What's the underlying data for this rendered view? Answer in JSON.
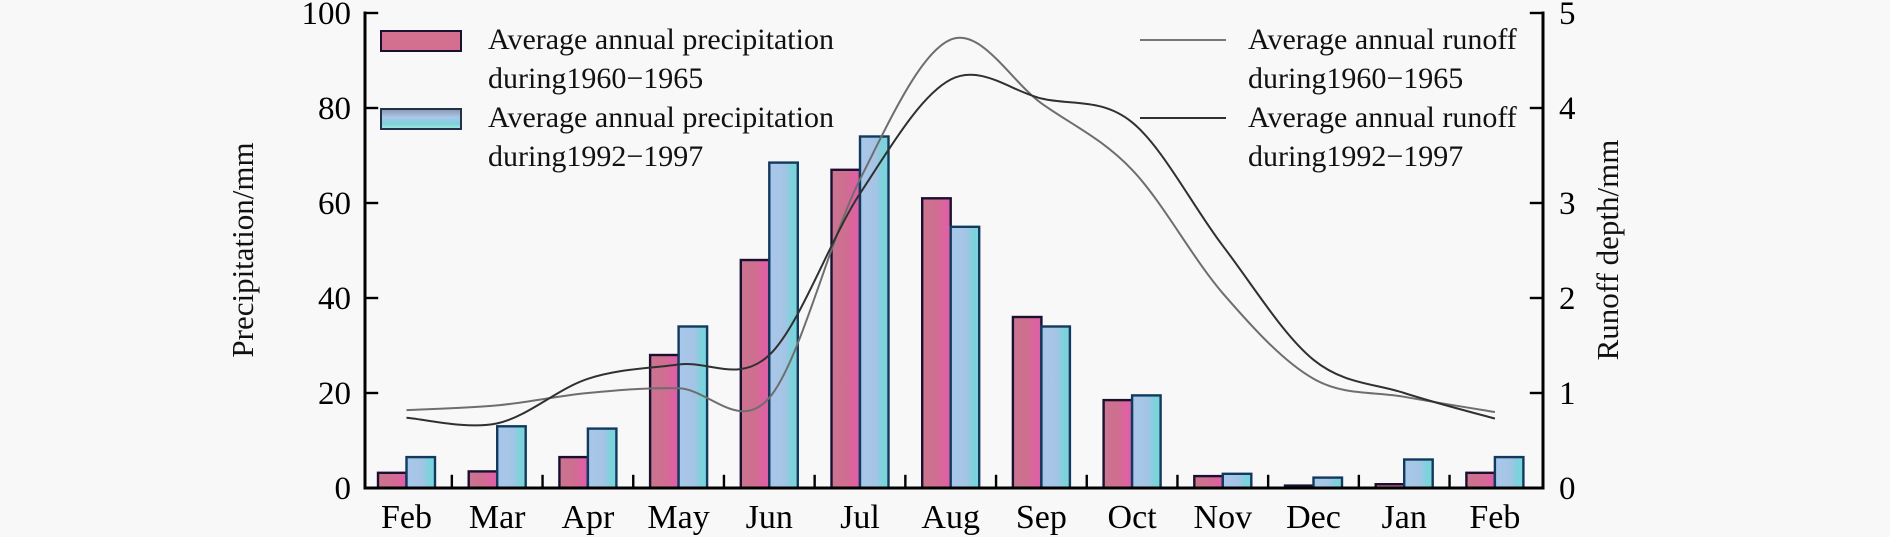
{
  "figure_background": "#f8f8f8",
  "legend_precip": {
    "items": [
      {
        "line1": "Average annual precipitation",
        "line2": "during1960−1965"
      },
      {
        "line1": "Average annual precipitation",
        "line2": "during1992−1997"
      }
    ]
  },
  "legend_runoff": {
    "items": [
      {
        "line1": "Average annual runoff",
        "line2": "during1960−1965"
      },
      {
        "line1": "Average annual runoff",
        "line2": "during1992−1997"
      }
    ]
  },
  "chart_data": {
    "type": "bar",
    "subtype": "grouped bars (left axis) + smoothed lines (right axis)",
    "categories": [
      "Feb",
      "Mar",
      "Apr",
      "May",
      "Jun",
      "Jul",
      "Aug",
      "Sep",
      "Oct",
      "Nov",
      "Dec",
      "Jan",
      "Feb"
    ],
    "bar_series": [
      {
        "name": "Average annual precipitation during1960−1965",
        "axis": "left",
        "values": [
          3.2,
          3.5,
          6.5,
          28,
          48,
          67,
          61,
          36,
          18.5,
          2.5,
          0.5,
          0.8,
          3.2
        ]
      },
      {
        "name": "Average annual precipitation during1992−1997",
        "axis": "left",
        "values": [
          6.5,
          13,
          12.5,
          34,
          68.5,
          74,
          55,
          34,
          19.5,
          3,
          2.2,
          6,
          6.5
        ]
      }
    ],
    "line_series": [
      {
        "name": "Average annual runoff during1960−1965",
        "axis": "right",
        "values": [
          0.82,
          0.87,
          1.0,
          1.05,
          0.95,
          3.25,
          4.72,
          4.05,
          3.35,
          2.05,
          1.15,
          0.96,
          0.8
        ]
      },
      {
        "name": "Average annual runoff during1992−1997",
        "axis": "right",
        "values": [
          0.74,
          0.68,
          1.15,
          1.3,
          1.4,
          3.1,
          4.3,
          4.1,
          3.85,
          2.55,
          1.35,
          1.0,
          0.73
        ]
      }
    ],
    "left_axis": {
      "title": "Precipitation/mm",
      "min": 0,
      "max": 100,
      "ticks": [
        0,
        20,
        40,
        60,
        80,
        100
      ]
    },
    "right_axis": {
      "title": "Runoff depth/mm",
      "min": 0,
      "max": 5,
      "ticks": [
        0,
        1,
        2,
        3,
        4,
        5
      ]
    },
    "grid": "off",
    "legend_position": "top-left (bars), top-right (lines)",
    "colors": {
      "bar_1960_fill_a": "#c97590",
      "bar_1960_fill_b": "#e160a5",
      "bar_1960_stroke": "#1c1030",
      "bar_1992_fill_a": "#a9c7e9",
      "bar_1992_fill_b": "#7dd2db",
      "bar_1992_stroke": "#123a5e",
      "line_1960": "#6e6e6e",
      "line_1992": "#303030",
      "axis": "#000000"
    }
  }
}
